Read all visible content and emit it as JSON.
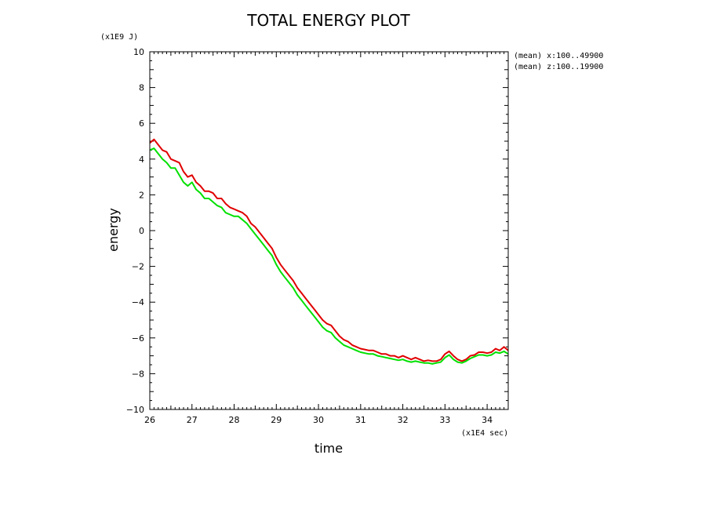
{
  "chart_data": {
    "type": "line",
    "title": "TOTAL ENERGY PLOT",
    "xlabel": "time",
    "ylabel": "energy",
    "x_unit": "(x1E4 sec)",
    "y_unit": "(x1E9 J)",
    "xlim": [
      26,
      34.5
    ],
    "ylim": [
      -10,
      10
    ],
    "x_ticks": [
      26,
      27,
      28,
      29,
      30,
      31,
      32,
      33,
      34
    ],
    "y_ticks": [
      -10,
      -8,
      -6,
      -4,
      -2,
      0,
      2,
      4,
      6,
      8,
      10
    ],
    "grid": false,
    "annotations": [
      "(mean) x:100..49900",
      "(mean) z:100..19900"
    ],
    "colors": {
      "red_series": "#e00000",
      "green_series": "#00e000"
    },
    "series": [
      {
        "color": "#e00000",
        "x": [
          26.0,
          26.1,
          26.2,
          26.3,
          26.4,
          26.5,
          26.6,
          26.7,
          26.8,
          26.9,
          27.0,
          27.1,
          27.2,
          27.3,
          27.4,
          27.5,
          27.6,
          27.7,
          27.8,
          27.9,
          28.0,
          28.1,
          28.2,
          28.3,
          28.4,
          28.5,
          28.6,
          28.7,
          28.8,
          28.9,
          29.0,
          29.1,
          29.2,
          29.3,
          29.4,
          29.5,
          29.6,
          29.7,
          29.8,
          29.9,
          30.0,
          30.1,
          30.2,
          30.3,
          30.4,
          30.5,
          30.6,
          30.7,
          30.8,
          30.9,
          31.0,
          31.1,
          31.2,
          31.3,
          31.4,
          31.5,
          31.6,
          31.7,
          31.8,
          31.9,
          32.0,
          32.1,
          32.2,
          32.3,
          32.4,
          32.5,
          32.6,
          32.7,
          32.8,
          32.9,
          33.0,
          33.1,
          33.2,
          33.3,
          33.4,
          33.5,
          33.6,
          33.7,
          33.8,
          33.9,
          34.0,
          34.1,
          34.2,
          34.3,
          34.4,
          34.5
        ],
        "y": [
          4.9,
          5.1,
          4.8,
          4.5,
          4.4,
          4.0,
          3.9,
          3.8,
          3.3,
          3.0,
          3.1,
          2.7,
          2.5,
          2.2,
          2.2,
          2.1,
          1.8,
          1.8,
          1.5,
          1.3,
          1.2,
          1.1,
          1.0,
          0.8,
          0.4,
          0.2,
          -0.1,
          -0.4,
          -0.7,
          -1.0,
          -1.5,
          -1.9,
          -2.2,
          -2.5,
          -2.8,
          -3.2,
          -3.5,
          -3.8,
          -4.1,
          -4.4,
          -4.7,
          -5.0,
          -5.2,
          -5.3,
          -5.6,
          -5.9,
          -6.1,
          -6.2,
          -6.4,
          -6.5,
          -6.6,
          -6.65,
          -6.7,
          -6.7,
          -6.8,
          -6.9,
          -6.9,
          -7.0,
          -7.0,
          -7.1,
          -7.0,
          -7.1,
          -7.2,
          -7.1,
          -7.2,
          -7.3,
          -7.25,
          -7.3,
          -7.3,
          -7.2,
          -6.9,
          -6.75,
          -7.0,
          -7.2,
          -7.3,
          -7.2,
          -7.0,
          -6.95,
          -6.8,
          -6.8,
          -6.85,
          -6.8,
          -6.6,
          -6.7,
          -6.5,
          -6.7
        ]
      },
      {
        "color": "#00e000",
        "x": [
          26.0,
          26.1,
          26.2,
          26.3,
          26.4,
          26.5,
          26.6,
          26.7,
          26.8,
          26.9,
          27.0,
          27.1,
          27.2,
          27.3,
          27.4,
          27.5,
          27.6,
          27.7,
          27.8,
          27.9,
          28.0,
          28.1,
          28.2,
          28.3,
          28.4,
          28.5,
          28.6,
          28.7,
          28.8,
          28.9,
          29.0,
          29.1,
          29.2,
          29.3,
          29.4,
          29.5,
          29.6,
          29.7,
          29.8,
          29.9,
          30.0,
          30.1,
          30.2,
          30.3,
          30.4,
          30.5,
          30.6,
          30.7,
          30.8,
          30.9,
          31.0,
          31.1,
          31.2,
          31.3,
          31.4,
          31.5,
          31.6,
          31.7,
          31.8,
          31.9,
          32.0,
          32.1,
          32.2,
          32.3,
          32.4,
          32.5,
          32.6,
          32.7,
          32.8,
          32.9,
          33.0,
          33.1,
          33.2,
          33.3,
          33.4,
          33.5,
          33.6,
          33.7,
          33.8,
          33.9,
          34.0,
          34.1,
          34.2,
          34.3,
          34.4,
          34.5
        ],
        "y": [
          4.5,
          4.6,
          4.3,
          4.0,
          3.8,
          3.5,
          3.5,
          3.1,
          2.7,
          2.5,
          2.7,
          2.3,
          2.1,
          1.8,
          1.8,
          1.6,
          1.4,
          1.3,
          1.0,
          0.9,
          0.8,
          0.8,
          0.6,
          0.4,
          0.1,
          -0.2,
          -0.5,
          -0.8,
          -1.1,
          -1.4,
          -1.9,
          -2.3,
          -2.6,
          -2.9,
          -3.2,
          -3.6,
          -3.9,
          -4.2,
          -4.5,
          -4.8,
          -5.1,
          -5.4,
          -5.6,
          -5.7,
          -6.0,
          -6.2,
          -6.4,
          -6.5,
          -6.6,
          -6.7,
          -6.8,
          -6.85,
          -6.9,
          -6.9,
          -7.0,
          -7.05,
          -7.1,
          -7.15,
          -7.2,
          -7.25,
          -7.2,
          -7.3,
          -7.35,
          -7.3,
          -7.35,
          -7.4,
          -7.4,
          -7.45,
          -7.4,
          -7.35,
          -7.1,
          -6.95,
          -7.2,
          -7.35,
          -7.4,
          -7.3,
          -7.15,
          -7.05,
          -6.95,
          -6.95,
          -7.0,
          -6.95,
          -6.8,
          -6.85,
          -6.75,
          -6.9
        ]
      }
    ]
  }
}
